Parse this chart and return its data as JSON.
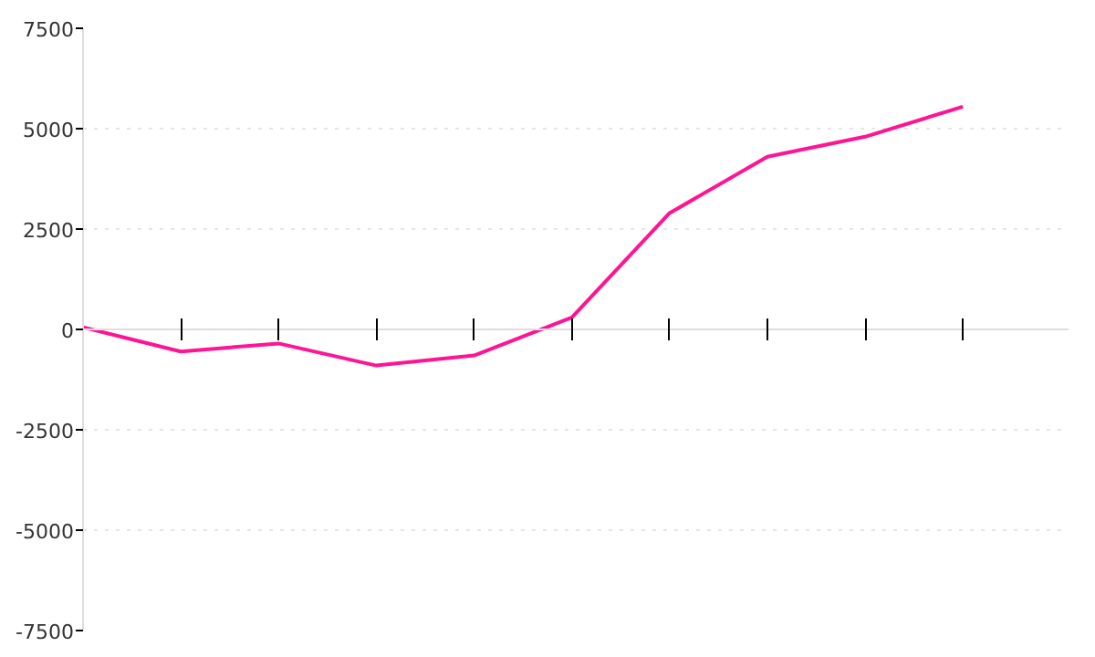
{
  "chart_data": {
    "type": "line",
    "categories": [
      null,
      null,
      null,
      null,
      null,
      null,
      null,
      null,
      null,
      null
    ],
    "series": [
      {
        "color": "#ff1493",
        "values": [
          50,
          -550,
          -350,
          -900,
          -650,
          300,
          2900,
          4300,
          4800,
          5550
        ]
      }
    ],
    "ylim": [
      -7500,
      7500
    ],
    "yticks": [
      -7500,
      -5000,
      -2500,
      0,
      2500,
      5000,
      7500
    ],
    "grid": "y",
    "tick_labels": "y",
    "line_style": "solid"
  }
}
